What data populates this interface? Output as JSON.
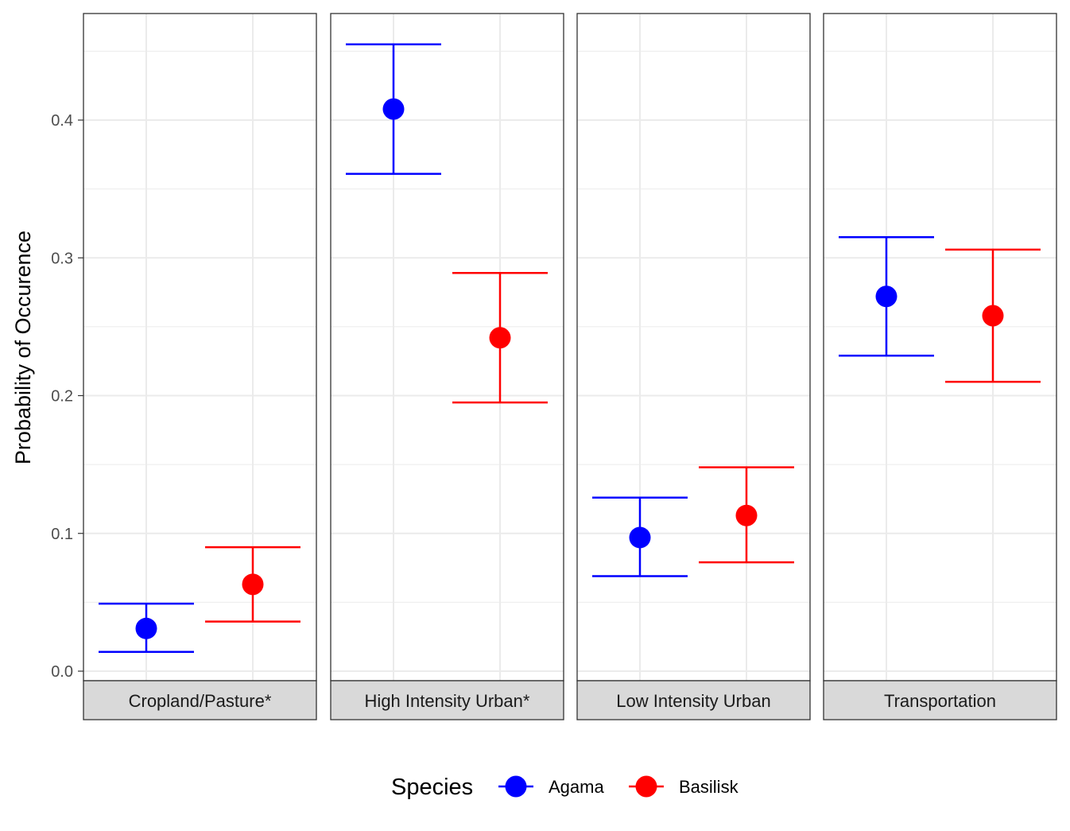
{
  "chart_data": {
    "type": "scatter",
    "subtype": "point-errorbar-faceted",
    "ylabel": "Probability of Occurence",
    "ylim": [
      -0.007,
      0.478
    ],
    "yticks": [
      "0.0",
      "0.1",
      "0.2",
      "0.3",
      "0.4"
    ],
    "facets": [
      "Cropland/Pasture*",
      "High Intensity Urban*",
      "Low Intensity Urban",
      "Transportation"
    ],
    "legend": {
      "title": "Species",
      "position": "bottom"
    },
    "series": [
      {
        "name": "Agama",
        "color": "#0000ff",
        "values": [
          0.031,
          0.408,
          0.097,
          0.272
        ],
        "lower": [
          0.014,
          0.361,
          0.069,
          0.229
        ],
        "upper": [
          0.049,
          0.455,
          0.126,
          0.315
        ]
      },
      {
        "name": "Basilisk",
        "color": "#ff0000",
        "values": [
          0.063,
          0.242,
          0.113,
          0.258
        ],
        "lower": [
          0.036,
          0.195,
          0.079,
          0.21
        ],
        "upper": [
          0.09,
          0.289,
          0.148,
          0.306
        ]
      }
    ],
    "grid": true
  }
}
